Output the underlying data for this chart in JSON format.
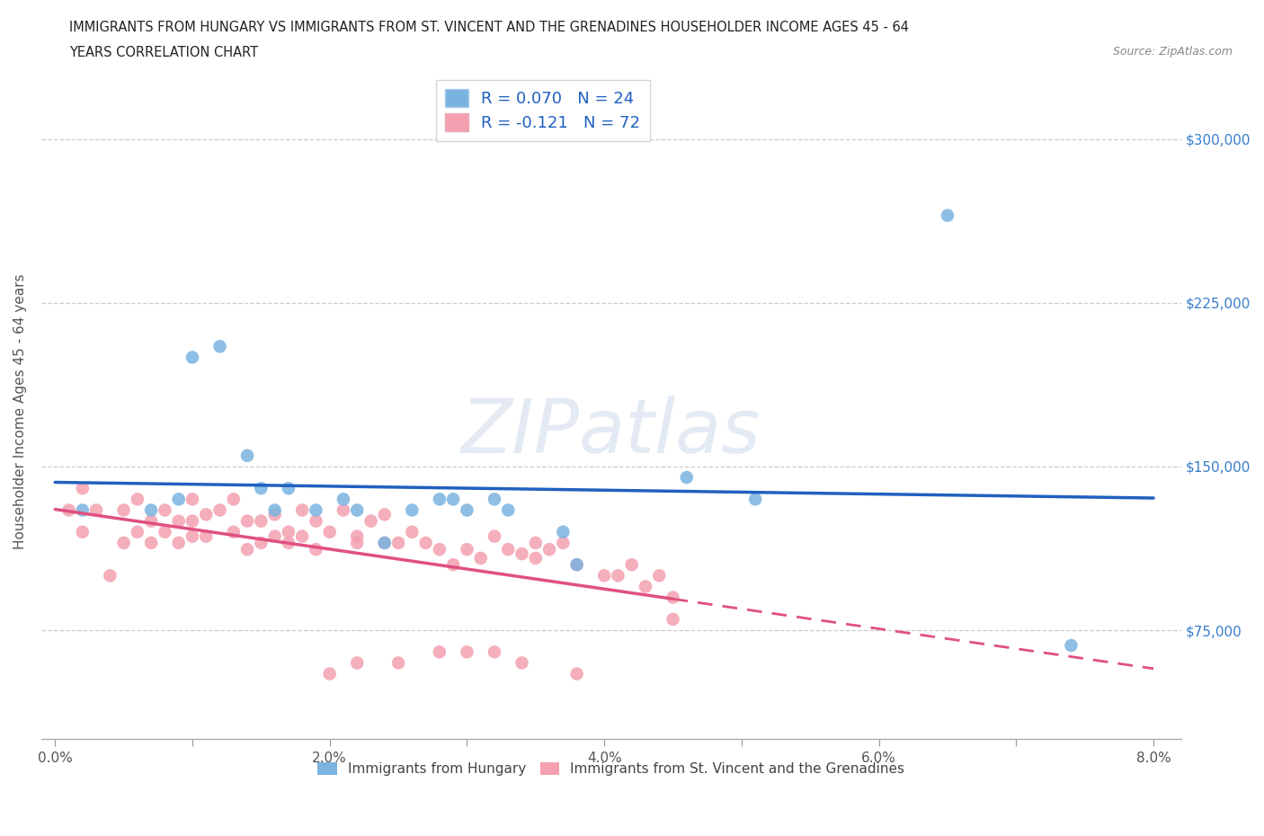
{
  "title_line1": "IMMIGRANTS FROM HUNGARY VS IMMIGRANTS FROM ST. VINCENT AND THE GRENADINES HOUSEHOLDER INCOME AGES 45 - 64",
  "title_line2": "YEARS CORRELATION CHART",
  "source": "Source: ZipAtlas.com",
  "ylabel": "Householder Income Ages 45 - 64 years",
  "xlim": [
    -0.001,
    0.082
  ],
  "ylim": [
    25000,
    325000
  ],
  "xticks": [
    0.0,
    0.01,
    0.02,
    0.03,
    0.04,
    0.05,
    0.06,
    0.07,
    0.08
  ],
  "xticklabels": [
    "0.0%",
    "",
    "2.0%",
    "",
    "4.0%",
    "",
    "6.0%",
    "",
    "8.0%"
  ],
  "yticks": [
    75000,
    150000,
    225000,
    300000
  ],
  "yticklabels": [
    "$75,000",
    "$150,000",
    "$225,000",
    "$300,000"
  ],
  "watermark": "ZIPatlas",
  "color_hungary": "#7ab3e0",
  "color_svg": "#f4a0b0",
  "trendline_hungary_color": "#2060c0",
  "trendline_svg_color": "#e05080",
  "hungary_scatter_x": [
    0.002,
    0.007,
    0.009,
    0.01,
    0.012,
    0.014,
    0.015,
    0.016,
    0.017,
    0.019,
    0.021,
    0.022,
    0.024,
    0.026,
    0.028,
    0.029,
    0.03,
    0.032,
    0.033,
    0.037,
    0.038,
    0.046,
    0.051,
    0.065,
    0.074
  ],
  "hungary_scatter_y": [
    130000,
    130000,
    135000,
    200000,
    205000,
    155000,
    140000,
    130000,
    140000,
    130000,
    135000,
    130000,
    115000,
    130000,
    135000,
    135000,
    130000,
    135000,
    130000,
    120000,
    105000,
    145000,
    135000,
    265000,
    68000
  ],
  "svg_scatter_x": [
    0.001,
    0.002,
    0.002,
    0.003,
    0.004,
    0.005,
    0.005,
    0.006,
    0.006,
    0.007,
    0.007,
    0.008,
    0.008,
    0.009,
    0.009,
    0.01,
    0.01,
    0.01,
    0.011,
    0.011,
    0.012,
    0.013,
    0.013,
    0.014,
    0.014,
    0.015,
    0.015,
    0.016,
    0.016,
    0.017,
    0.017,
    0.018,
    0.018,
    0.019,
    0.019,
    0.02,
    0.021,
    0.022,
    0.022,
    0.023,
    0.024,
    0.024,
    0.025,
    0.026,
    0.027,
    0.028,
    0.029,
    0.03,
    0.031,
    0.032,
    0.033,
    0.034,
    0.035,
    0.035,
    0.036,
    0.037,
    0.038,
    0.04,
    0.041,
    0.042,
    0.043,
    0.044,
    0.045,
    0.045,
    0.02,
    0.022,
    0.025,
    0.028,
    0.03,
    0.032,
    0.034,
    0.038
  ],
  "svg_scatter_y": [
    130000,
    140000,
    120000,
    130000,
    100000,
    115000,
    130000,
    120000,
    135000,
    115000,
    125000,
    120000,
    130000,
    115000,
    125000,
    125000,
    135000,
    118000,
    128000,
    118000,
    130000,
    120000,
    135000,
    125000,
    112000,
    125000,
    115000,
    118000,
    128000,
    120000,
    115000,
    118000,
    130000,
    125000,
    112000,
    120000,
    130000,
    118000,
    115000,
    125000,
    115000,
    128000,
    115000,
    120000,
    115000,
    112000,
    105000,
    112000,
    108000,
    118000,
    112000,
    110000,
    115000,
    108000,
    112000,
    115000,
    105000,
    100000,
    100000,
    105000,
    95000,
    100000,
    80000,
    90000,
    55000,
    60000,
    60000,
    65000,
    65000,
    65000,
    60000,
    55000
  ]
}
